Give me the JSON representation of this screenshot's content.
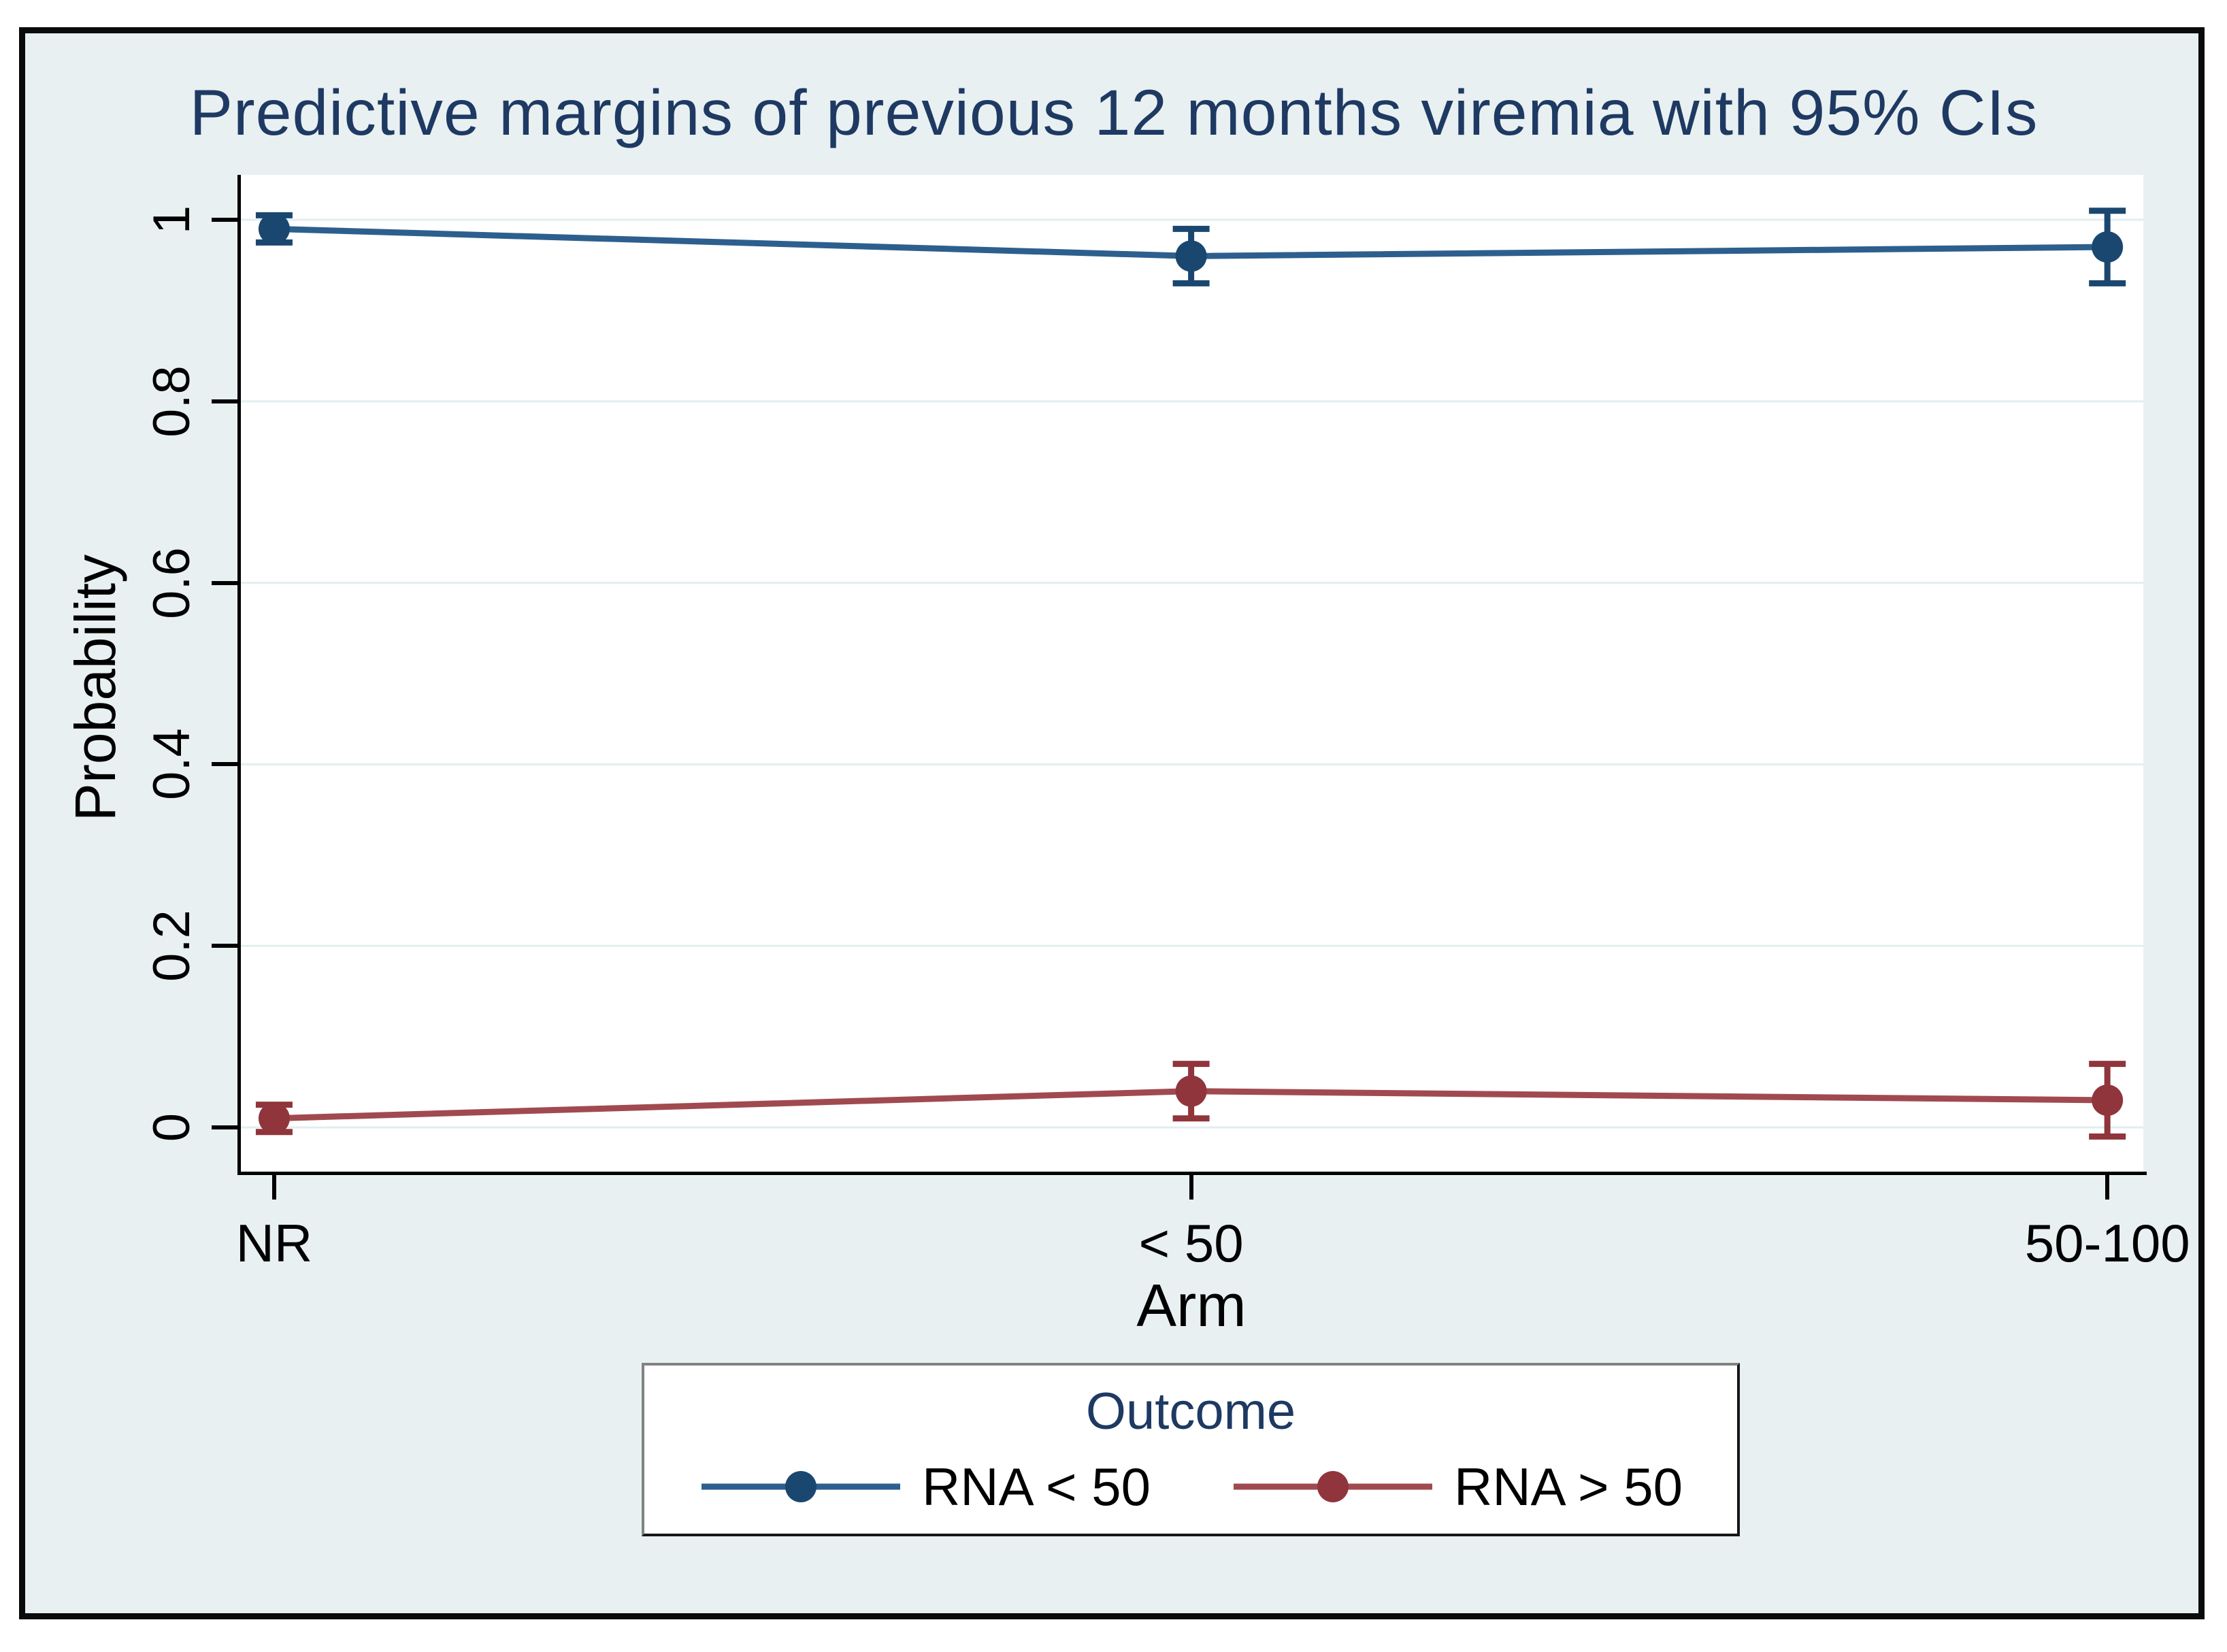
{
  "figure": {
    "title": "Predictive margins of previous 12 months viremia with 95% CIs"
  },
  "chart_data": {
    "type": "line",
    "title": "Predictive margins of previous 12 months viremia with 95% CIs",
    "xlabel": "Arm",
    "ylabel": "Probability",
    "categories": [
      "NR",
      "< 50",
      "50-100"
    ],
    "y_tick_values": [
      0,
      0.2,
      0.4,
      0.6,
      0.8,
      1
    ],
    "y_tick_labels": [
      "0",
      "0.2",
      "0.4",
      "0.6",
      "0.8",
      "1"
    ],
    "ylim": [
      -0.05,
      1.05
    ],
    "grid": true,
    "legend": {
      "title": "Outcome",
      "position": "bottom"
    },
    "colors": {
      "background": "#e9f0f2",
      "plot_background": "#ffffff",
      "gridline": "#e3eef0",
      "axis": "#000000",
      "title_text": "#1e3a63",
      "navy_marker": "#1a476f",
      "navy_line": "#2d5f8e",
      "maroon_marker": "#90353b",
      "maroon_line": "#a04a50"
    },
    "series": [
      {
        "name": "RNA < 50",
        "marker_color": "#1a476f",
        "line_color": "#2d5f8e",
        "values": [
          0.99,
          0.96,
          0.97
        ],
        "ci_low": [
          0.975,
          0.93,
          0.93
        ],
        "ci_high": [
          1.005,
          0.99,
          1.01
        ]
      },
      {
        "name": "RNA > 50",
        "marker_color": "#90353b",
        "line_color": "#a04a50",
        "values": [
          0.01,
          0.04,
          0.03
        ],
        "ci_low": [
          -0.005,
          0.01,
          -0.01
        ],
        "ci_high": [
          0.025,
          0.07,
          0.07
        ]
      }
    ]
  }
}
